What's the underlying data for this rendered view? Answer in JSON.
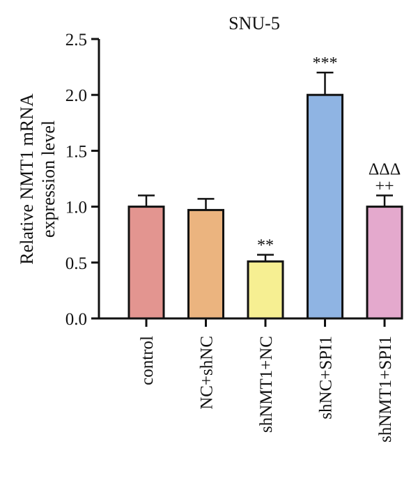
{
  "chart_data": {
    "type": "bar",
    "title": "SNU-5",
    "ylabel_lines": [
      "Relative NMT1 mRNA",
      "expression level"
    ],
    "xlabel": "",
    "ylim": [
      0,
      2.5
    ],
    "yticks": [
      0.0,
      0.5,
      1.0,
      1.5,
      2.0,
      2.5
    ],
    "ytick_labels": [
      "0.0",
      "0.5",
      "1.0",
      "1.5",
      "2.0",
      "2.5"
    ],
    "categories": [
      "control",
      "NC+shNC",
      "shNMT1+NC",
      "shNC+SPI1",
      "shNMT1+SPI1"
    ],
    "values": [
      1.0,
      0.97,
      0.51,
      2.0,
      1.0
    ],
    "errors": [
      0.1,
      0.1,
      0.06,
      0.2,
      0.1
    ],
    "colors": [
      "#e39590",
      "#ebb47f",
      "#f6ef92",
      "#8fb4e3",
      "#e4a9cd"
    ],
    "annotations": [
      [],
      [],
      [
        "**"
      ],
      [
        "***"
      ],
      [
        "++",
        "ΔΔΔ"
      ]
    ],
    "grid": false,
    "legend": "none"
  }
}
